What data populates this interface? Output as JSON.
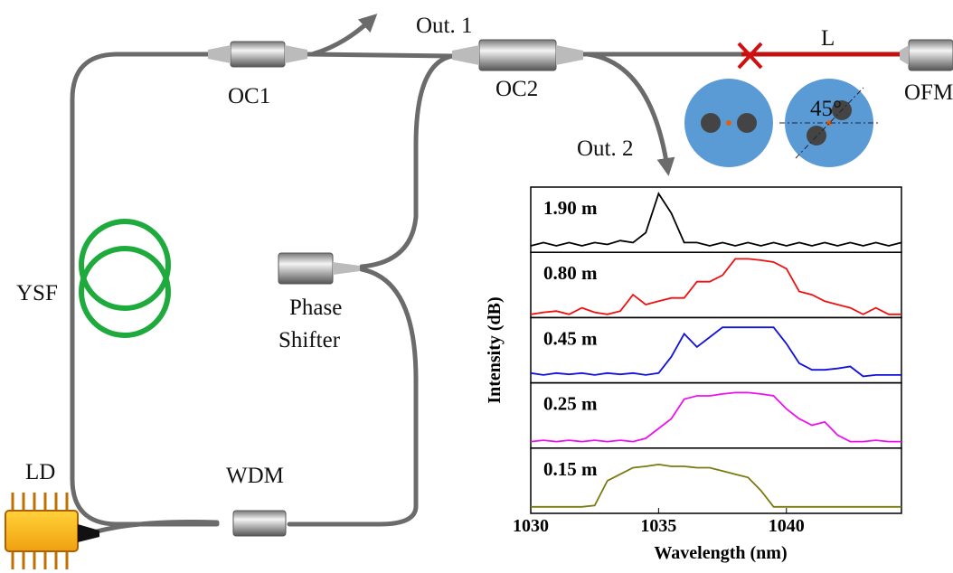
{
  "labels": {
    "out1": "Out. 1",
    "oc1": "OC1",
    "oc2": "OC2",
    "l": "L",
    "ofm": "OFM",
    "angle": "45°",
    "out2": "Out. 2",
    "ysf": "YSF",
    "phase_shifter": [
      "Phase",
      "Shifter"
    ],
    "ld": "LD",
    "wdm": "WDM"
  },
  "chart_data": {
    "type": "line",
    "xlabel": "Wavelength (nm)",
    "ylabel": "Intensity (dB)",
    "xlim": [
      1030,
      1044.5
    ],
    "xticks": [
      1030,
      1035,
      1040
    ],
    "ylim": [
      0,
      1
    ],
    "x": [
      1030,
      1030.5,
      1031,
      1031.5,
      1032,
      1032.5,
      1033,
      1033.5,
      1034,
      1034.5,
      1035,
      1035.5,
      1036,
      1036.5,
      1037,
      1037.5,
      1038,
      1038.5,
      1039,
      1039.5,
      1040,
      1040.5,
      1041,
      1041.5,
      1042,
      1042.5,
      1043,
      1043.5,
      1044,
      1044.5
    ],
    "series": [
      {
        "name": "1.90 m",
        "color": "#000000",
        "values": [
          0.1,
          0.15,
          0.1,
          0.15,
          0.1,
          0.15,
          0.12,
          0.18,
          0.15,
          0.3,
          0.9,
          0.6,
          0.15,
          0.15,
          0.1,
          0.15,
          0.1,
          0.15,
          0.1,
          0.15,
          0.1,
          0.15,
          0.1,
          0.15,
          0.1,
          0.15,
          0.1,
          0.15,
          0.1,
          0.15
        ]
      },
      {
        "name": "0.80 m",
        "color": "#ee1111",
        "values": [
          0.05,
          0.08,
          0.1,
          0.05,
          0.15,
          0.08,
          0.05,
          0.1,
          0.35,
          0.2,
          0.25,
          0.3,
          0.3,
          0.55,
          0.55,
          0.65,
          0.9,
          0.9,
          0.88,
          0.85,
          0.75,
          0.4,
          0.35,
          0.25,
          0.2,
          0.15,
          0.05,
          0.15,
          0.05,
          0.05
        ]
      },
      {
        "name": "0.45 m",
        "color": "#1111dd",
        "values": [
          0.15,
          0.12,
          0.15,
          0.13,
          0.15,
          0.12,
          0.15,
          0.13,
          0.15,
          0.12,
          0.15,
          0.4,
          0.75,
          0.55,
          0.7,
          0.85,
          0.85,
          0.85,
          0.85,
          0.85,
          0.6,
          0.3,
          0.2,
          0.2,
          0.22,
          0.25,
          0.1,
          0.12,
          0.12,
          0.12
        ]
      },
      {
        "name": "0.25 m",
        "color": "#ee11ee",
        "values": [
          0.1,
          0.12,
          0.1,
          0.12,
          0.1,
          0.12,
          0.1,
          0.12,
          0.1,
          0.15,
          0.3,
          0.45,
          0.75,
          0.8,
          0.8,
          0.83,
          0.85,
          0.85,
          0.83,
          0.8,
          0.6,
          0.45,
          0.35,
          0.4,
          0.2,
          0.1,
          0.1,
          0.12,
          0.1,
          0.1
        ]
      },
      {
        "name": "0.15 m",
        "color": "#7a7a10",
        "values": [
          0.1,
          0.1,
          0.1,
          0.1,
          0.1,
          0.12,
          0.5,
          0.6,
          0.7,
          0.72,
          0.75,
          0.72,
          0.72,
          0.7,
          0.7,
          0.65,
          0.6,
          0.55,
          0.35,
          0.1,
          0.1,
          0.1,
          0.1,
          0.1,
          0.1,
          0.1,
          0.1,
          0.1,
          0.1,
          0.1
        ]
      }
    ]
  }
}
